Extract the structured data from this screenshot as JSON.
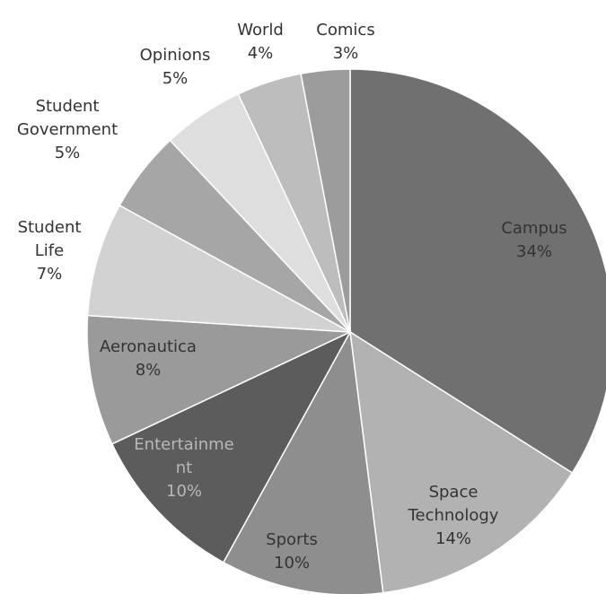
{
  "chart_data": {
    "type": "pie",
    "categories": [
      "Campus",
      "Space\nTechnology",
      "Sports",
      "Entertainme\nnt",
      "Aeronautica",
      "Student\nLife",
      "Student\nGovernment",
      "Opinions",
      "World",
      "Comics"
    ],
    "values": [
      34,
      14,
      10,
      10,
      8,
      7,
      5,
      5,
      4,
      3
    ],
    "value_labels": [
      "34%",
      "14%",
      "10%",
      "10%",
      "8%",
      "7%",
      "5%",
      "5%",
      "4%",
      "3%"
    ],
    "colors": [
      "#707070",
      "#b2b2b2",
      "#8e8e8e",
      "#5c5c5c",
      "#9a9a9a",
      "#d2d2d2",
      "#a6a6a6",
      "#dedede",
      "#bdbdbd",
      "#9c9c9c"
    ]
  }
}
